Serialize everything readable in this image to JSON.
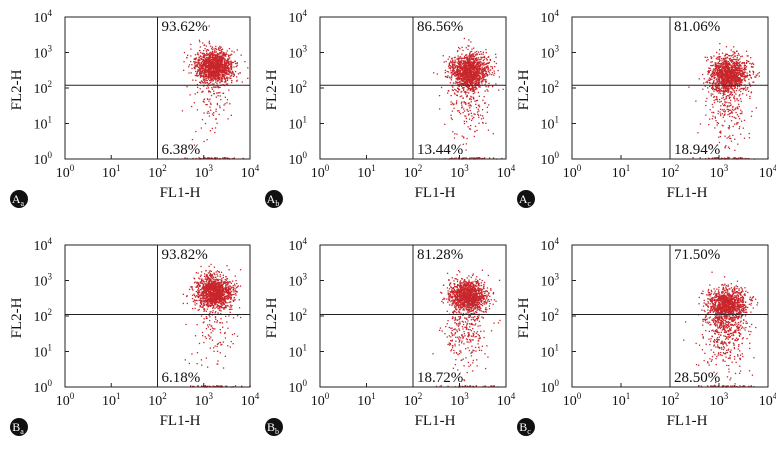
{
  "chart_data": [
    {
      "type": "scatter",
      "panel_label": "A",
      "panel_sub": "a",
      "xlabel": "FL1-H",
      "ylabel": "FL2-H",
      "xscale": "log",
      "yscale": "log",
      "xlim": [
        1,
        10000
      ],
      "ylim": [
        1,
        10000
      ],
      "ticks": [
        "10",
        "10",
        "10",
        "10",
        "10"
      ],
      "tick_exponents": [
        "0",
        "1",
        "2",
        "3",
        "4"
      ],
      "gates": {
        "x": 100,
        "y": 120
      },
      "quadrant_labels": {
        "upper_right": "93.62%",
        "lower_right": "6.38%"
      },
      "upper_right_fraction": 0.9362,
      "population": {
        "center_x": 1700,
        "center_y": 400
      },
      "color": "#c8262c"
    },
    {
      "type": "scatter",
      "panel_label": "A",
      "panel_sub": "b",
      "xlabel": "FL1-H",
      "ylabel": "FL2-H",
      "xscale": "log",
      "yscale": "log",
      "xlim": [
        1,
        10000
      ],
      "ylim": [
        1,
        10000
      ],
      "ticks": [
        "10",
        "10",
        "10",
        "10",
        "10"
      ],
      "tick_exponents": [
        "0",
        "1",
        "2",
        "3",
        "4"
      ],
      "gates": {
        "x": 100,
        "y": 120
      },
      "quadrant_labels": {
        "upper_right": "86.56%",
        "lower_right": "13.44%"
      },
      "upper_right_fraction": 0.8656,
      "population": {
        "center_x": 1600,
        "center_y": 300
      },
      "color": "#c8262c"
    },
    {
      "type": "scatter",
      "panel_label": "A",
      "panel_sub": "c",
      "xlabel": "FL1-H",
      "ylabel": "FL2-H",
      "xscale": "log",
      "yscale": "log",
      "xlim": [
        1,
        10000
      ],
      "ylim": [
        1,
        10000
      ],
      "ticks": [
        "10",
        "10",
        "10",
        "10",
        "10"
      ],
      "tick_exponents": [
        "0",
        "1",
        "2",
        "3",
        "4"
      ],
      "gates": {
        "x": 100,
        "y": 120
      },
      "quadrant_labels": {
        "upper_right": "81.06%",
        "lower_right": "18.94%"
      },
      "upper_right_fraction": 0.8106,
      "population": {
        "center_x": 1600,
        "center_y": 250
      },
      "color": "#c8262c"
    },
    {
      "type": "scatter",
      "panel_label": "B",
      "panel_sub": "a",
      "xlabel": "FL1-H",
      "ylabel": "FL2-H",
      "xscale": "log",
      "yscale": "log",
      "xlim": [
        1,
        10000
      ],
      "ylim": [
        1,
        10000
      ],
      "ticks": [
        "10",
        "10",
        "10",
        "10",
        "10"
      ],
      "tick_exponents": [
        "0",
        "1",
        "2",
        "3",
        "4"
      ],
      "gates": {
        "x": 100,
        "y": 110
      },
      "quadrant_labels": {
        "upper_right": "93.82%",
        "lower_right": "6.18%"
      },
      "upper_right_fraction": 0.9382,
      "population": {
        "center_x": 1700,
        "center_y": 450
      },
      "color": "#c8262c"
    },
    {
      "type": "scatter",
      "panel_label": "B",
      "panel_sub": "b",
      "xlabel": "FL1-H",
      "ylabel": "FL2-H",
      "xscale": "log",
      "yscale": "log",
      "xlim": [
        1,
        10000
      ],
      "ylim": [
        1,
        10000
      ],
      "ticks": [
        "10",
        "10",
        "10",
        "10",
        "10"
      ],
      "tick_exponents": [
        "0",
        "1",
        "2",
        "3",
        "4"
      ],
      "gates": {
        "x": 100,
        "y": 110
      },
      "quadrant_labels": {
        "upper_right": "81.28%",
        "lower_right": "18.72%"
      },
      "upper_right_fraction": 0.8128,
      "population": {
        "center_x": 1500,
        "center_y": 350
      },
      "color": "#c8262c"
    },
    {
      "type": "scatter",
      "panel_label": "B",
      "panel_sub": "c",
      "xlabel": "FL1-H",
      "ylabel": "FL2-H",
      "xscale": "log",
      "yscale": "log",
      "xlim": [
        1,
        10000
      ],
      "ylim": [
        1,
        10000
      ],
      "ticks": [
        "10",
        "10",
        "10",
        "10",
        "10"
      ],
      "tick_exponents": [
        "0",
        "1",
        "2",
        "3",
        "4"
      ],
      "gates": {
        "x": 100,
        "y": 110
      },
      "quadrant_labels": {
        "upper_right": "71.50%",
        "lower_right": "28.50%"
      },
      "upper_right_fraction": 0.715,
      "population": {
        "center_x": 1500,
        "center_y": 200
      },
      "color": "#c8262c"
    }
  ]
}
